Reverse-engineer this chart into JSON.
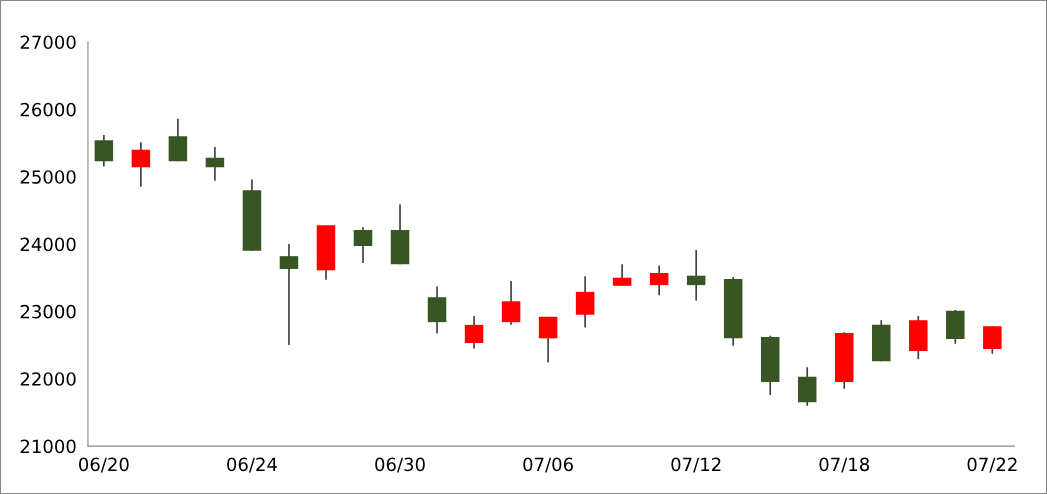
{
  "chart_data": {
    "type": "candlestick",
    "categories": [
      "06/20",
      null,
      null,
      null,
      "06/24",
      null,
      null,
      null,
      "06/30",
      null,
      null,
      null,
      "07/06",
      null,
      null,
      null,
      "07/12",
      null,
      null,
      null,
      "07/18",
      null,
      null,
      null,
      "07/22"
    ],
    "ohlc": [
      [
        25540,
        25620,
        25150,
        25230
      ],
      [
        25140,
        25510,
        24850,
        25400
      ],
      [
        25600,
        25860,
        25230,
        25230
      ],
      [
        25280,
        25440,
        24940,
        25140
      ],
      [
        24800,
        24960,
        23900,
        23900
      ],
      [
        23820,
        24000,
        22500,
        23630
      ],
      [
        23610,
        24280,
        23470,
        24280
      ],
      [
        24210,
        24250,
        23720,
        23970
      ],
      [
        24210,
        24590,
        23700,
        23700
      ],
      [
        23210,
        23370,
        22670,
        22840
      ],
      [
        22530,
        22930,
        22450,
        22800
      ],
      [
        22840,
        23450,
        22800,
        23150
      ],
      [
        22600,
        22920,
        22240,
        22920
      ],
      [
        22950,
        23520,
        22760,
        23290
      ],
      [
        23380,
        23700,
        23380,
        23500
      ],
      [
        23390,
        23680,
        23240,
        23570
      ],
      [
        23530,
        23910,
        23160,
        23390
      ],
      [
        23480,
        23510,
        22490,
        22600
      ],
      [
        22620,
        22640,
        21760,
        21950
      ],
      [
        22030,
        22170,
        21600,
        21650
      ],
      [
        21950,
        22690,
        21850,
        22680
      ],
      [
        22800,
        22870,
        22260,
        22260
      ],
      [
        22410,
        22930,
        22290,
        22870
      ],
      [
        23010,
        23020,
        22520,
        22590
      ],
      [
        22440,
        22780,
        22370,
        22780
      ]
    ],
    "colors": [
      "#375623",
      "#ff0000",
      "#375623",
      "#375623",
      "#375623",
      "#375623",
      "#ff0000",
      "#375623",
      "#375623",
      "#375623",
      "#ff0000",
      "#ff0000",
      "#ff0000",
      "#ff0000",
      "#ff0000",
      "#ff0000",
      "#375623",
      "#375623",
      "#375623",
      "#375623",
      "#ff0000",
      "#375623",
      "#ff0000",
      "#375623",
      "#ff0000"
    ],
    "ylim": [
      21000,
      27000
    ],
    "yticks": [
      21000,
      22000,
      23000,
      24000,
      25000,
      26000,
      27000
    ],
    "grid": false,
    "legend": false
  }
}
